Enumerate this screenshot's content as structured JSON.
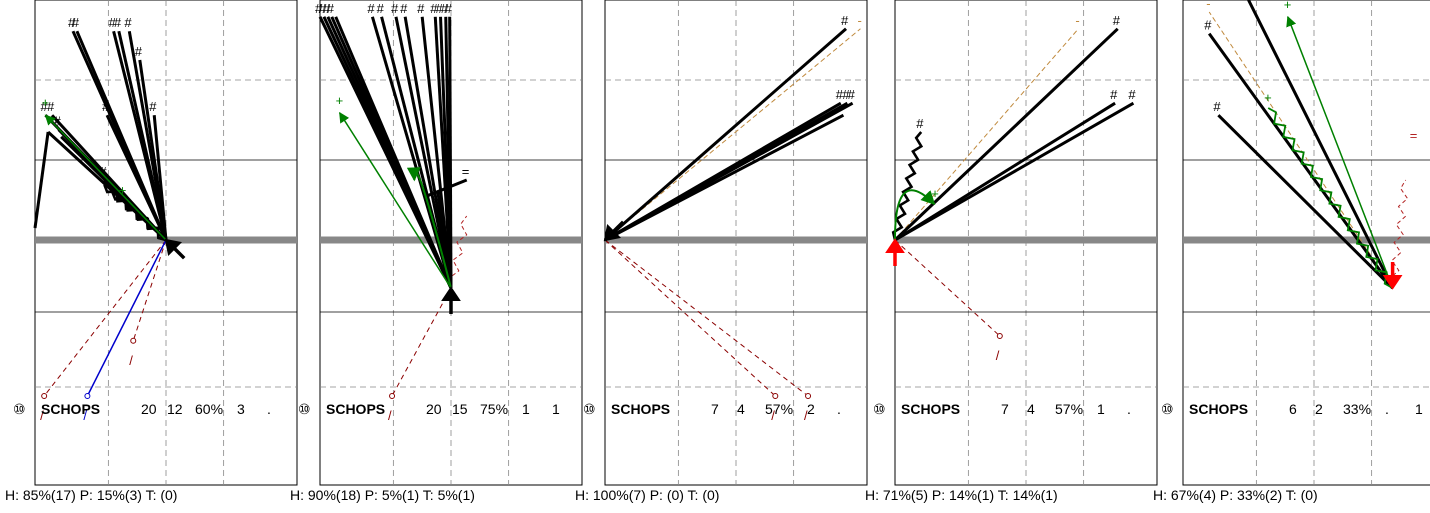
{
  "chart_data": [
    {
      "type": "other",
      "panel_label": {
        "number": "⑩",
        "name": "SCHOPS",
        "values": [
          "20",
          "12",
          "60%",
          "3",
          "."
        ]
      },
      "footer": "H: 85%(17)  P: 15%(3)  T: (0)",
      "origin": {
        "x": 0.0,
        "y": 0.0
      },
      "origin_arrow": {
        "color": "#000000",
        "dir": "nw"
      },
      "shots": [
        {
          "x": -0.71,
          "y": 0.87,
          "marker": "#"
        },
        {
          "x": -0.68,
          "y": 0.87,
          "marker": "#"
        },
        {
          "x": -0.4,
          "y": 0.87,
          "marker": "#"
        },
        {
          "x": -0.36,
          "y": 0.87,
          "marker": "#"
        },
        {
          "x": -0.28,
          "y": 0.87,
          "marker": "#"
        },
        {
          "x": -0.2,
          "y": 0.75,
          "marker": "#"
        },
        {
          "x": -0.92,
          "y": 0.52,
          "marker": "#"
        },
        {
          "x": -0.87,
          "y": 0.52,
          "marker": "#"
        },
        {
          "x": -0.45,
          "y": 0.52,
          "marker": "#"
        },
        {
          "x": -0.09,
          "y": 0.52,
          "marker": "#"
        },
        {
          "x": -0.82,
          "y": 0.46,
          "marker": "#"
        },
        {
          "x": -0.9,
          "y": 0.45,
          "marker": ""
        },
        {
          "x": -0.8,
          "y": 0.43,
          "marker": ""
        },
        {
          "x": -0.47,
          "y": 0.25,
          "marker": "#"
        },
        {
          "x": -0.47,
          "y": 0.23,
          "marker": "",
          "wavy": true
        },
        {
          "x": -0.41,
          "y": 0.2,
          "marker": "",
          "wavy": true
        },
        {
          "x": -1.0,
          "y": 0.05,
          "marker": "",
          "from": {
            "x": -0.9,
            "y": 0.45
          }
        }
      ],
      "green": [
        {
          "x": -0.92,
          "y": 0.52,
          "marker": "+"
        }
      ],
      "green_pts": [
        {
          "x": -0.33,
          "y": 0.19,
          "marker": "+"
        }
      ],
      "red_dashed": [
        {
          "x": -0.93,
          "y": -0.65,
          "marker": "/"
        },
        {
          "x": -0.25,
          "y": -0.42,
          "marker": "/"
        }
      ],
      "blue": [
        {
          "x": -0.6,
          "y": -0.65,
          "marker": "/"
        }
      ],
      "thick_gray_y": 0.0
    },
    {
      "type": "other",
      "panel_label": {
        "number": "⑩",
        "name": "SCHOPS",
        "values": [
          "20",
          "15",
          "75%",
          "1",
          "1"
        ]
      },
      "footer": "H: 90%(18)  P: 5%(1)  T: 5%(1)",
      "origin": {
        "x": 0.0,
        "y": -0.2
      },
      "origin_arrow": {
        "color": "#000000",
        "dir": "n"
      },
      "shots": [
        {
          "x": -1.0,
          "y": 0.93,
          "marker": "#"
        },
        {
          "x": -0.97,
          "y": 0.93,
          "marker": "#"
        },
        {
          "x": -0.94,
          "y": 0.93,
          "marker": "#"
        },
        {
          "x": -0.91,
          "y": 0.93,
          "marker": "#"
        },
        {
          "x": -0.88,
          "y": 0.93,
          "marker": ""
        },
        {
          "x": -0.6,
          "y": 0.93,
          "marker": "#"
        },
        {
          "x": -0.53,
          "y": 0.93,
          "marker": "#"
        },
        {
          "x": -0.42,
          "y": 0.93,
          "marker": "#"
        },
        {
          "x": -0.35,
          "y": 0.93,
          "marker": "#"
        },
        {
          "x": -0.22,
          "y": 0.93,
          "marker": "#"
        },
        {
          "x": -0.12,
          "y": 0.93,
          "marker": "#"
        },
        {
          "x": -0.08,
          "y": 0.93,
          "marker": "#"
        },
        {
          "x": -0.04,
          "y": 0.93,
          "marker": "#"
        },
        {
          "x": -0.01,
          "y": 0.93,
          "marker": "#"
        },
        {
          "x": -0.2,
          "y": 0.22,
          "marker": ""
        },
        {
          "x": 0.12,
          "y": 0.25,
          "marker": "=",
          "from": {
            "x": -0.2,
            "y": 0.18
          }
        },
        {
          "x": -0.1,
          "y": 0.2,
          "marker": ""
        }
      ],
      "green": [
        {
          "x": -0.85,
          "y": 0.53,
          "marker": "+"
        }
      ],
      "green_arc": [
        {
          "x": -0.28,
          "y": 0.25
        }
      ],
      "red_dashed": [
        {
          "x": -0.45,
          "y": -0.65,
          "marker": "/"
        }
      ],
      "red_wavy": [
        {
          "x": 0.12,
          "y": 0.1
        }
      ],
      "thick_gray_y": 0.0
    },
    {
      "type": "other",
      "panel_label": {
        "number": "⑩",
        "name": "SCHOPS",
        "values": [
          "7",
          "4",
          "57%",
          "2",
          "."
        ]
      },
      "footer": "H: 100%(7)  P: (0)  T: (0)",
      "origin": {
        "x": -1.0,
        "y": 0.0
      },
      "origin_arrow": {
        "color": "#000000",
        "dir": "sw"
      },
      "shots": [
        {
          "x": 0.84,
          "y": 0.88,
          "marker": "#"
        },
        {
          "x": 0.8,
          "y": 0.57,
          "marker": "#"
        },
        {
          "x": 0.85,
          "y": 0.57,
          "marker": "#"
        },
        {
          "x": 0.89,
          "y": 0.57,
          "marker": "#"
        },
        {
          "x": 0.82,
          "y": 0.52,
          "marker": ""
        }
      ],
      "tan": [
        {
          "x": 0.95,
          "y": 0.88,
          "marker": "-"
        }
      ],
      "red_dashed": [
        {
          "x": 0.3,
          "y": -0.65,
          "marker": "/"
        },
        {
          "x": 0.55,
          "y": -0.65,
          "marker": "/"
        }
      ],
      "thick_gray_y": 0.0
    },
    {
      "type": "other",
      "panel_label": {
        "number": "⑩",
        "name": "SCHOPS",
        "values": [
          "7",
          "4",
          "57%",
          "1",
          "."
        ]
      },
      "footer": "H: 71%(5)  P: 14%(1)  T: 14%(1)",
      "origin": {
        "x": -1.0,
        "y": 0.0
      },
      "origin_arrow": {
        "color": "#ff0000",
        "dir": "n"
      },
      "shots": [
        {
          "x": -0.8,
          "y": 0.45,
          "marker": "#",
          "wavy": true
        },
        {
          "x": 0.7,
          "y": 0.88,
          "marker": "#"
        },
        {
          "x": 0.68,
          "y": 0.57,
          "marker": "#"
        },
        {
          "x": 0.82,
          "y": 0.57,
          "marker": "#"
        }
      ],
      "tan": [
        {
          "x": 0.4,
          "y": 0.88,
          "marker": "-"
        }
      ],
      "green_arc": [
        {
          "x": -0.7,
          "y": 0.15,
          "marker": "+"
        }
      ],
      "red_dashed": [
        {
          "x": -0.2,
          "y": -0.4,
          "marker": "/"
        }
      ],
      "thick_gray_y": 0.0
    },
    {
      "type": "other",
      "panel_label": {
        "number": "⑩",
        "name": "SCHOPS",
        "values": [
          "6",
          "2",
          "33%",
          ".",
          "1"
        ]
      },
      "footer": "H: 67%(4)  P: 33%(2)  T: (0)",
      "origin": {
        "x": 0.6,
        "y": -0.2
      },
      "origin_arrow": {
        "color": "#ff0000",
        "dir": "s"
      },
      "shots": [
        {
          "x": -0.8,
          "y": 0.86,
          "marker": "#"
        },
        {
          "x": -0.73,
          "y": 0.52,
          "marker": "#"
        },
        {
          "x": -0.5,
          "y": 1.0,
          "marker": ""
        }
      ],
      "tan": [
        {
          "x": -0.8,
          "y": 0.95,
          "marker": "-"
        }
      ],
      "green": [
        {
          "x": -0.2,
          "y": 0.93,
          "marker": "+"
        }
      ],
      "green_wavy": [
        {
          "x": -0.35,
          "y": 0.55,
          "marker": "+"
        }
      ],
      "red_wavy": [
        {
          "x": 0.7,
          "y": 0.25,
          "marker": "="
        }
      ],
      "thick_gray_y": 0.0
    }
  ]
}
